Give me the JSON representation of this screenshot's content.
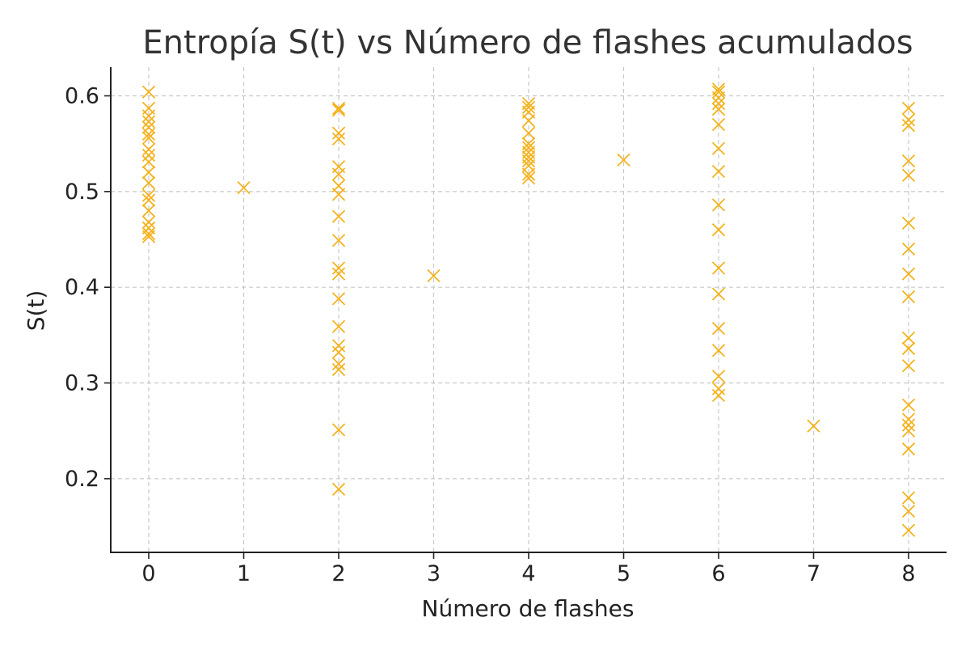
{
  "chart_data": {
    "type": "scatter",
    "title": "Entropía S(t) vs Número de flashes acumulados",
    "xlabel": "Número de flashes",
    "ylabel": "S(t)",
    "xlim": [
      -0.4,
      8.4
    ],
    "ylim": [
      0.123,
      0.63
    ],
    "xticks": [
      0,
      1,
      2,
      3,
      4,
      5,
      6,
      7,
      8
    ],
    "yticks": [
      0.2,
      0.3,
      0.4,
      0.5,
      0.6
    ],
    "ytick_labels": [
      "0.2",
      "0.3",
      "0.4",
      "0.5",
      "0.6"
    ],
    "grid": true,
    "marker": "x",
    "color": "#f5b21b",
    "points": [
      {
        "x": 0,
        "y": 0.604
      },
      {
        "x": 0,
        "y": 0.587
      },
      {
        "x": 0,
        "y": 0.579
      },
      {
        "x": 0,
        "y": 0.573
      },
      {
        "x": 0,
        "y": 0.567
      },
      {
        "x": 0,
        "y": 0.56
      },
      {
        "x": 0,
        "y": 0.556
      },
      {
        "x": 0,
        "y": 0.544
      },
      {
        "x": 0,
        "y": 0.538
      },
      {
        "x": 0,
        "y": 0.531
      },
      {
        "x": 0,
        "y": 0.52
      },
      {
        "x": 0,
        "y": 0.509
      },
      {
        "x": 0,
        "y": 0.496
      },
      {
        "x": 0,
        "y": 0.491
      },
      {
        "x": 0,
        "y": 0.48
      },
      {
        "x": 0,
        "y": 0.468
      },
      {
        "x": 0,
        "y": 0.462
      },
      {
        "x": 0,
        "y": 0.456
      },
      {
        "x": 0,
        "y": 0.453
      },
      {
        "x": 1,
        "y": 0.504
      },
      {
        "x": 2,
        "y": 0.587
      },
      {
        "x": 2,
        "y": 0.585
      },
      {
        "x": 2,
        "y": 0.561
      },
      {
        "x": 2,
        "y": 0.555
      },
      {
        "x": 2,
        "y": 0.526
      },
      {
        "x": 2,
        "y": 0.518
      },
      {
        "x": 2,
        "y": 0.506
      },
      {
        "x": 2,
        "y": 0.497
      },
      {
        "x": 2,
        "y": 0.474
      },
      {
        "x": 2,
        "y": 0.449
      },
      {
        "x": 2,
        "y": 0.42
      },
      {
        "x": 2,
        "y": 0.414
      },
      {
        "x": 2,
        "y": 0.388
      },
      {
        "x": 2,
        "y": 0.359
      },
      {
        "x": 2,
        "y": 0.339
      },
      {
        "x": 2,
        "y": 0.332
      },
      {
        "x": 2,
        "y": 0.32
      },
      {
        "x": 2,
        "y": 0.314
      },
      {
        "x": 2,
        "y": 0.251
      },
      {
        "x": 2,
        "y": 0.189
      },
      {
        "x": 3,
        "y": 0.412
      },
      {
        "x": 4,
        "y": 0.592
      },
      {
        "x": 4,
        "y": 0.588
      },
      {
        "x": 4,
        "y": 0.583
      },
      {
        "x": 4,
        "y": 0.574
      },
      {
        "x": 4,
        "y": 0.561
      },
      {
        "x": 4,
        "y": 0.55
      },
      {
        "x": 4,
        "y": 0.546
      },
      {
        "x": 4,
        "y": 0.541
      },
      {
        "x": 4,
        "y": 0.536
      },
      {
        "x": 4,
        "y": 0.532
      },
      {
        "x": 4,
        "y": 0.527
      },
      {
        "x": 4,
        "y": 0.518
      },
      {
        "x": 4,
        "y": 0.514
      },
      {
        "x": 5,
        "y": 0.533
      },
      {
        "x": 6,
        "y": 0.607
      },
      {
        "x": 6,
        "y": 0.604
      },
      {
        "x": 6,
        "y": 0.598
      },
      {
        "x": 6,
        "y": 0.592
      },
      {
        "x": 6,
        "y": 0.586
      },
      {
        "x": 6,
        "y": 0.57
      },
      {
        "x": 6,
        "y": 0.545
      },
      {
        "x": 6,
        "y": 0.521
      },
      {
        "x": 6,
        "y": 0.486
      },
      {
        "x": 6,
        "y": 0.46
      },
      {
        "x": 6,
        "y": 0.42
      },
      {
        "x": 6,
        "y": 0.393
      },
      {
        "x": 6,
        "y": 0.357
      },
      {
        "x": 6,
        "y": 0.334
      },
      {
        "x": 6,
        "y": 0.307
      },
      {
        "x": 6,
        "y": 0.294
      },
      {
        "x": 6,
        "y": 0.287
      },
      {
        "x": 7,
        "y": 0.255
      },
      {
        "x": 8,
        "y": 0.587
      },
      {
        "x": 8,
        "y": 0.575
      },
      {
        "x": 8,
        "y": 0.569
      },
      {
        "x": 8,
        "y": 0.532
      },
      {
        "x": 8,
        "y": 0.517
      },
      {
        "x": 8,
        "y": 0.467
      },
      {
        "x": 8,
        "y": 0.44
      },
      {
        "x": 8,
        "y": 0.414
      },
      {
        "x": 8,
        "y": 0.39
      },
      {
        "x": 8,
        "y": 0.347
      },
      {
        "x": 8,
        "y": 0.336
      },
      {
        "x": 8,
        "y": 0.318
      },
      {
        "x": 8,
        "y": 0.277
      },
      {
        "x": 8,
        "y": 0.262
      },
      {
        "x": 8,
        "y": 0.256
      },
      {
        "x": 8,
        "y": 0.25
      },
      {
        "x": 8,
        "y": 0.231
      },
      {
        "x": 8,
        "y": 0.18
      },
      {
        "x": 8,
        "y": 0.166
      },
      {
        "x": 8,
        "y": 0.146
      }
    ]
  }
}
